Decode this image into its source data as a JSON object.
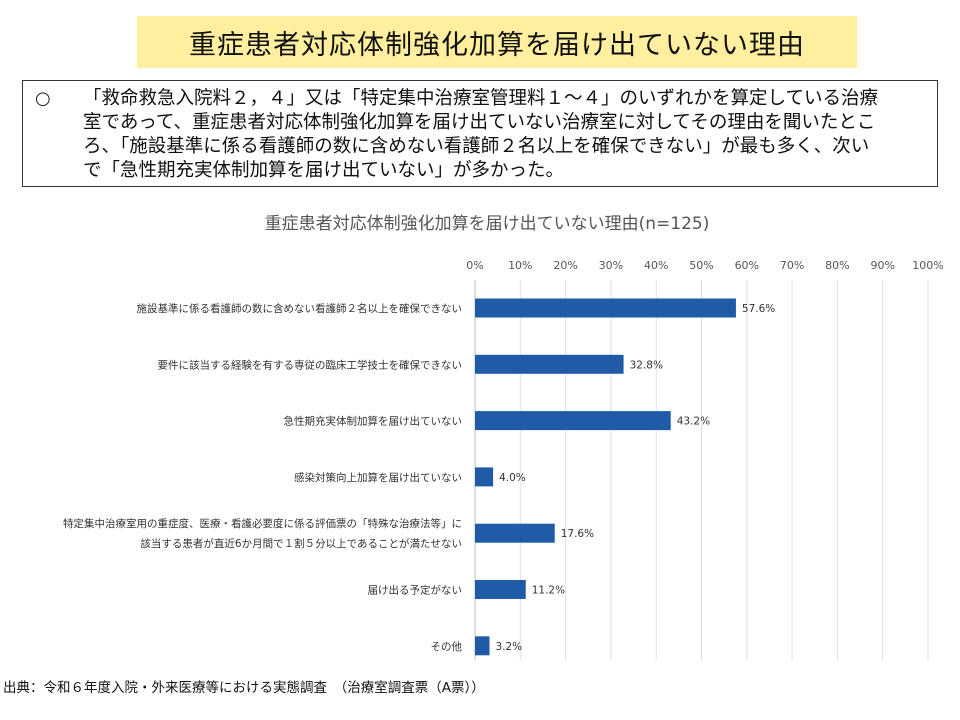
{
  "title": "重症患者対応体制強化加算を届け出ていない理由",
  "summary": {
    "bullet": "○",
    "text": "「救命救急入院料２，４」又は「特定集中治療室管理料１～４」のいずれかを算定している治療\n室であって、重症患者対応体制強化加算を届け出ていない治療室に対してその理由を聞いたとこ\nろ、「施設基準に係る看護師の数に含めない看護師２名以上を確保できない」が最も多く、次い\nで「急性期充実体制加算を届け出ていない」が多かった。"
  },
  "chart_data": {
    "type": "bar",
    "orientation": "horizontal",
    "title": "重症患者対応体制強化加算を届け出ていない理由(n=125)",
    "categories": [
      [
        "施設基準に係る看護師の数に含めない看護師２名以上を確保できない"
      ],
      [
        "要件に該当する経験を有する専従の臨床工学技士を確保できない"
      ],
      [
        "急性期充実体制加算を届け出ていない"
      ],
      [
        "感染対策向上加算を届け出ていない"
      ],
      [
        "特定集中治療室用の重症度、医療・看護必要度に係る評価票の「特殊な治療法等」に",
        "該当する患者が直近6か月間で１割５分以上であることが満たせない"
      ],
      [
        "届け出る予定がない"
      ],
      [
        "その他"
      ]
    ],
    "values": [
      57.6,
      32.8,
      43.2,
      4.0,
      17.6,
      11.2,
      3.2
    ],
    "value_labels": [
      "57.6%",
      "32.8%",
      "43.2%",
      "4.0%",
      "17.6%",
      "11.2%",
      "3.2%"
    ],
    "x_ticks": [
      "0%",
      "10%",
      "20%",
      "30%",
      "40%",
      "50%",
      "60%",
      "70%",
      "80%",
      "90%",
      "100%"
    ],
    "xlim": [
      0,
      100
    ],
    "grid": true,
    "bar_color": "#1f5ba6"
  },
  "source": "出典：令和６年度入院・外来医療等における実態調査　（治療室調査票（A票））"
}
